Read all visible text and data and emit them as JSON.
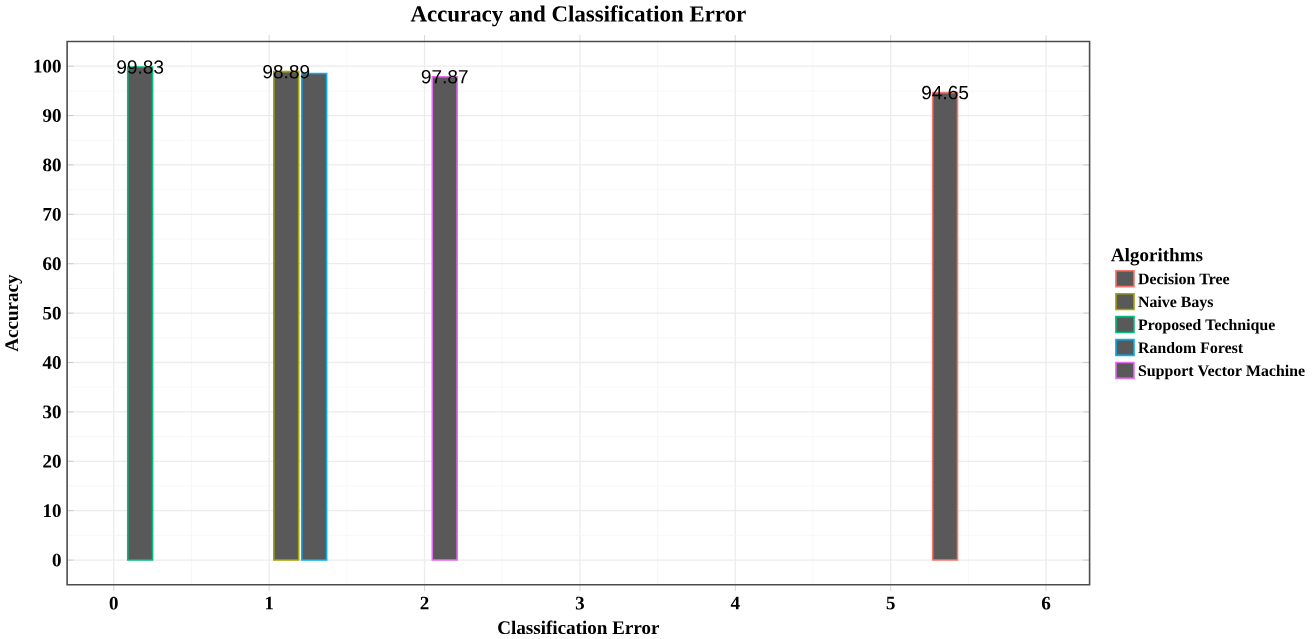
{
  "chart_data": {
    "type": "bar",
    "title": "Accuracy and Classification Error",
    "xlabel": "Classification Error",
    "ylabel": "Accuracy",
    "legend_title": "Algorithms",
    "series": [
      {
        "name": "Decision Tree",
        "color": "#f8766d",
        "x": [
          5.35
        ],
        "values": [
          94.65
        ],
        "value_labels": [
          "94.65"
        ]
      },
      {
        "name": "Naive Bays",
        "color": "#a3a500",
        "x": [
          1.11
        ],
        "values": [
          98.89
        ],
        "value_labels": [
          "98.89"
        ]
      },
      {
        "name": "Proposed Technique",
        "color": "#00bf7d",
        "x": [
          0.17
        ],
        "values": [
          99.83
        ],
        "value_labels": [
          "99.83"
        ]
      },
      {
        "name": "Random Forest",
        "color": "#00b0f6",
        "x": [
          1.29
        ],
        "values": [
          98.5
        ],
        "value_labels": [
          null
        ]
      },
      {
        "name": "Support Vector Machine",
        "color": "#e76bf3",
        "x": [
          2.13
        ],
        "values": [
          97.87
        ],
        "value_labels": [
          "97.87"
        ]
      }
    ],
    "xlim": [
      -0.3,
      6.28
    ],
    "ylim": [
      -5,
      105
    ],
    "xticks": [
      0,
      1,
      2,
      3,
      4,
      5,
      6
    ],
    "yticks": [
      0,
      10,
      20,
      30,
      40,
      50,
      60,
      70,
      80,
      90,
      100
    ],
    "grid": true,
    "legend": "right"
  }
}
